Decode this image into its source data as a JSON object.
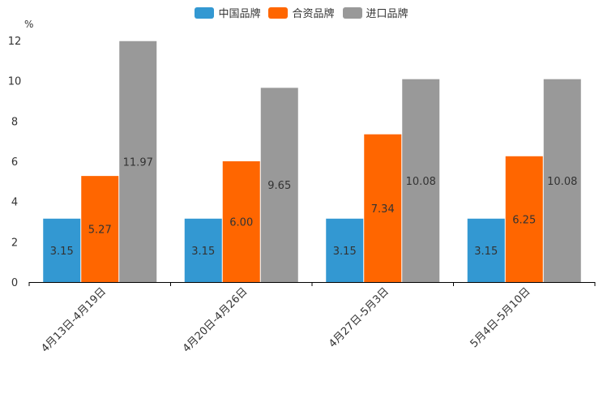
{
  "chart_data": {
    "type": "bar",
    "title": "",
    "xlabel": "",
    "ylabel": "%",
    "ylim": [
      0,
      12
    ],
    "yticks": [
      0,
      2,
      4,
      6,
      8,
      10,
      12
    ],
    "grid": false,
    "legend_position": "top-center",
    "categories": [
      "4月13日-4月19日",
      "4月20日-4月26日",
      "4月27日-5月3日",
      "5月4日-5月10日"
    ],
    "series": [
      {
        "name": "中国品牌",
        "color": "#3398d2",
        "values": [
          3.15,
          3.15,
          3.15,
          3.15
        ],
        "labels": [
          "3.15",
          "3.15",
          "3.15",
          "3.15"
        ]
      },
      {
        "name": "合资品牌",
        "color": "#ff6600",
        "values": [
          5.27,
          6.0,
          7.34,
          6.25
        ],
        "labels": [
          "5.27",
          "6.00",
          "7.34",
          "6.25"
        ]
      },
      {
        "name": "进口品牌",
        "color": "#999999",
        "values": [
          11.97,
          9.65,
          10.08,
          10.08
        ],
        "labels": [
          "11.97",
          "9.65",
          "10.08",
          "10.08"
        ]
      }
    ]
  }
}
